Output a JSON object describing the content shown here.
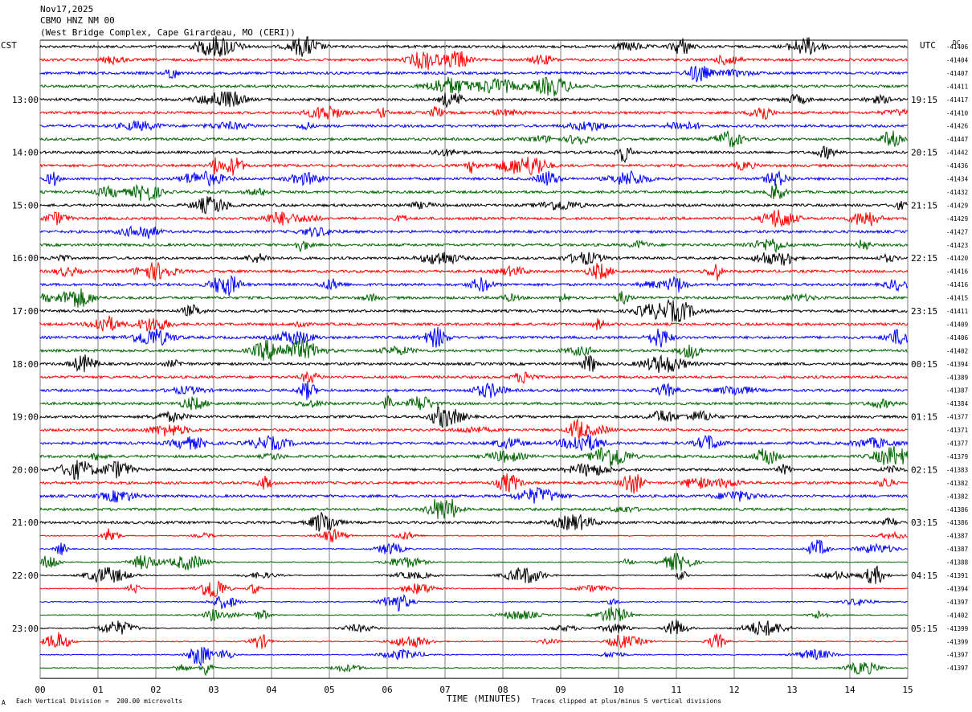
{
  "header": {
    "date": "Nov17,2025",
    "station": "CBMO HNZ NM 00",
    "location": "(West Bridge Complex, Cape Girardeau, MO (CERI))"
  },
  "axes": {
    "left_tz": "CST",
    "right_tz": "UTC",
    "dc_label": "DC",
    "xlabel": "TIME (MINUTES)",
    "x_ticks": [
      "00",
      "01",
      "02",
      "03",
      "04",
      "05",
      "06",
      "07",
      "08",
      "09",
      "10",
      "11",
      "12",
      "13",
      "14",
      "15"
    ],
    "left_hours": [
      "13:00",
      "14:00",
      "15:00",
      "16:00",
      "17:00",
      "18:00",
      "19:00",
      "20:00",
      "21:00",
      "22:00",
      "23:00"
    ],
    "right_hours": [
      "19:15",
      "20:15",
      "21:15",
      "22:15",
      "23:15",
      "00:15",
      "01:15",
      "02:15",
      "03:15",
      "04:15",
      "05:15"
    ]
  },
  "footer": {
    "scale_note": "Each Vertical Division =  200.00 microvolts",
    "clip_note": "Traces clipped at plus/minus 5 vertical divisions",
    "corner_mark": "A"
  },
  "colors": {
    "trace_cycle": [
      "#000000",
      "#ff0000",
      "#0000ff",
      "#006400"
    ],
    "grid": "#808080"
  },
  "chart_data": {
    "type": "line",
    "title": "CBMO HNZ NM 00",
    "xlabel": "TIME (MINUTES)",
    "xlim": [
      0,
      15
    ],
    "trace_count": 48,
    "minutes_per_trace": 15,
    "dc_offsets": [
      -41406,
      -41404,
      -41407,
      -41411,
      -41417,
      -41410,
      -41426,
      -41447,
      -41442,
      -41436,
      -41434,
      -41432,
      -41429,
      -41429,
      -41427,
      -41423,
      -41420,
      -41416,
      -41416,
      -41415,
      -41411,
      -41409,
      -41406,
      -41402,
      -41394,
      -41389,
      -41387,
      -41384,
      -41377,
      -41371,
      -41377,
      -41379,
      -41383,
      -41382,
      -41382,
      -41386,
      -41386,
      -41387,
      -41387,
      -41388,
      -41391,
      -41394,
      -41397,
      -41402,
      -41399,
      -41399,
      -41397,
      -41397
    ]
  }
}
